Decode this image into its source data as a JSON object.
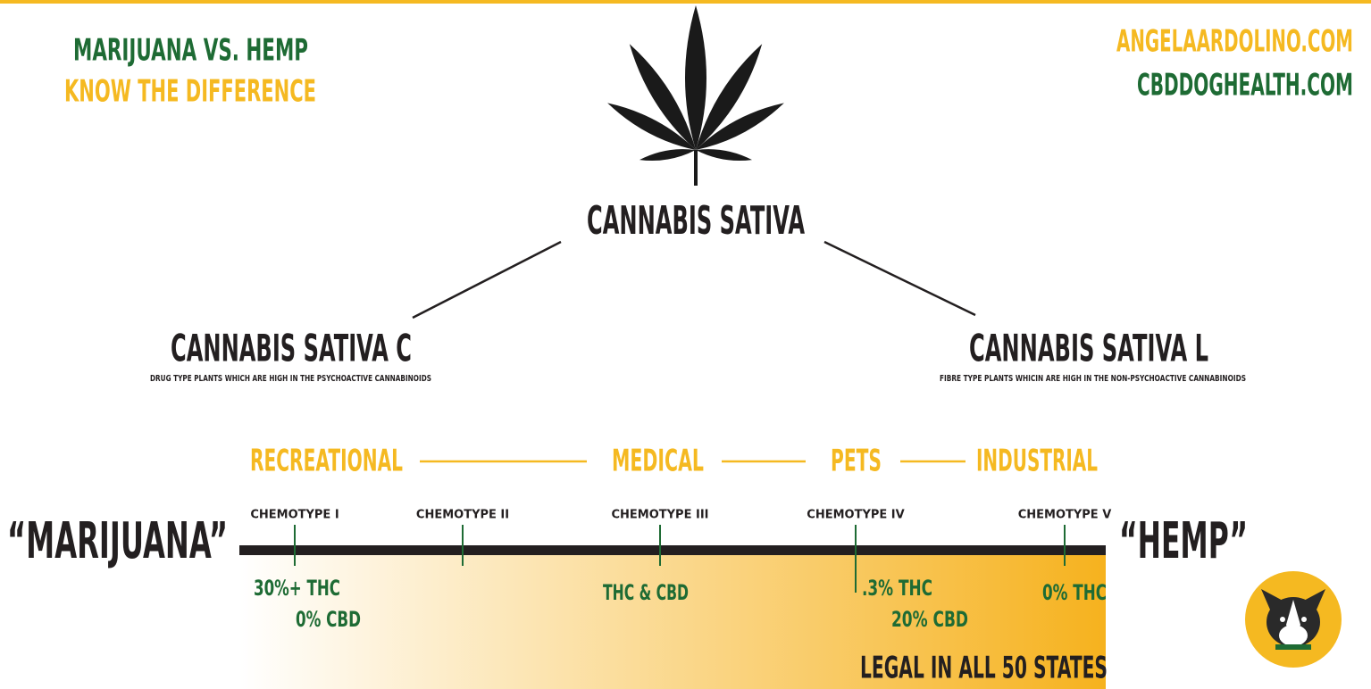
{
  "header": {
    "title": "MARIJUANA VS. HEMP",
    "subtitle": "KNOW THE DIFFERENCE",
    "sites": [
      "ANGELAARDOLINO.COM",
      "CBDDOGHEALTH.COM"
    ]
  },
  "root": "CANNABIS SATIVA",
  "branches": [
    {
      "name": "CANNABIS SATIVA C",
      "description": "DRUG TYPE PLANTS WHICH ARE HIGH IN THE PSYCHOACTIVE CANNABINOIDS"
    },
    {
      "name": "CANNABIS SATIVA L",
      "description": "FIBRE TYPE PLANTS  WHICIN ARE HIGH IN THE NON-PSYCHOACTIVE CANNABINOIDS"
    }
  ],
  "uses": [
    "RECREATIONAL",
    "MEDICAL",
    "PETS",
    "INDUSTRIAL"
  ],
  "spectrum": {
    "left": "“MARIJUANA”",
    "right": "“HEMP”"
  },
  "chemotypes": [
    {
      "label": "CHEMOTYPE I",
      "amounts": [
        "30%+ THC",
        "0% CBD"
      ]
    },
    {
      "label": "CHEMOTYPE II",
      "amounts": []
    },
    {
      "label": "CHEMOTYPE III",
      "amounts": [
        "THC & CBD"
      ]
    },
    {
      "label": "CHEMOTYPE IV",
      "amounts": [
        ".3% THC",
        "20% CBD"
      ]
    },
    {
      "label": "CHEMOTYPE V",
      "amounts": [
        "0% THC"
      ]
    }
  ],
  "legal_note": "LEGAL IN ALL 50 STATES"
}
